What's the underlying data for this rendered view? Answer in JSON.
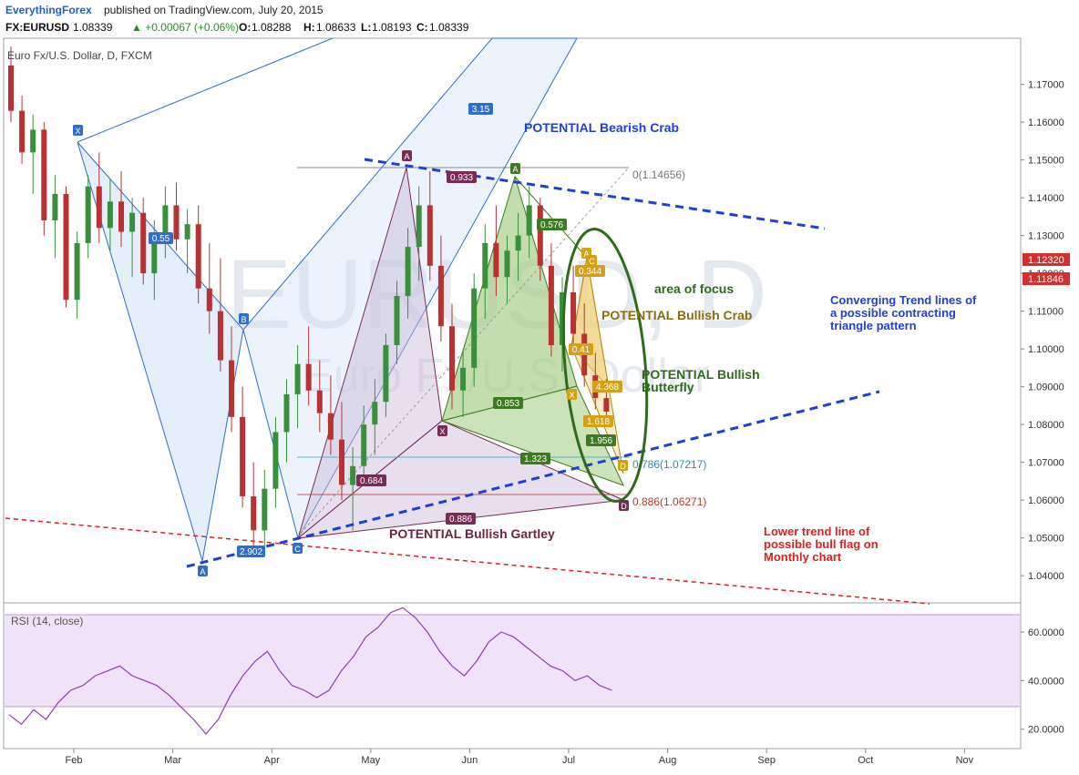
{
  "header": {
    "author": "EverythingForex",
    "published": "published on TradingView.com, July 20, 2015",
    "symbol": "FX:EURUSD",
    "last": "1.08339",
    "change": "▲ +0.00067 (+0.06%)",
    "o_label": "O:",
    "o": "1.08288",
    "h_label": "H:",
    "h": "1.08633",
    "l_label": "L:",
    "l": "1.08193",
    "c_label": "C:",
    "c": "1.08339"
  },
  "instrument_name": "Euro Fx/U.S. Dollar, D, FXCM",
  "watermark": {
    "symbol": "EURUSD, D",
    "name": "Euro Fx/U.S. Dollar"
  },
  "colors": {
    "up": "#3a8f3a",
    "down": "#b83232",
    "blue": "#1f4fd6",
    "green": "#2e6b1a",
    "olive": "#8a6d12",
    "maroon": "#6e2340",
    "red": "#e02020"
  },
  "chart_data": [
    {
      "type": "candlestick",
      "price_scale": {
        "ylim": [
          1.0328,
          1.1822
        ],
        "ticks": [
          "1.17000",
          "1.16000",
          "1.15000",
          "1.14000",
          "1.13000",
          "1.12000",
          "1.11000",
          "1.10000",
          "1.09000",
          "1.08000",
          "1.07000",
          "1.06000",
          "1.05000",
          "1.04000"
        ]
      },
      "time_axis": {
        "labels": [
          "Feb",
          "Mar",
          "Apr",
          "May",
          "Jun",
          "Jul",
          "Aug",
          "Sep",
          "Oct",
          "Nov"
        ]
      },
      "price_badges": [
        {
          "value": "1.12320",
          "color": "#d32f2f"
        },
        {
          "value": "1.11846",
          "color": "#d32f2f"
        }
      ],
      "candles_approx": [
        [
          0,
          1.175,
          1.18,
          1.16,
          1.163
        ],
        [
          1,
          1.163,
          1.167,
          1.149,
          1.152
        ],
        [
          2,
          1.152,
          1.162,
          1.141,
          1.158
        ],
        [
          3,
          1.158,
          1.16,
          1.13,
          1.134
        ],
        [
          4,
          1.134,
          1.146,
          1.124,
          1.141
        ],
        [
          5,
          1.141,
          1.143,
          1.111,
          1.113
        ],
        [
          6,
          1.113,
          1.131,
          1.108,
          1.128
        ],
        [
          7,
          1.128,
          1.146,
          1.124,
          1.143
        ],
        [
          8,
          1.143,
          1.152,
          1.128,
          1.132
        ],
        [
          9,
          1.132,
          1.145,
          1.126,
          1.139
        ],
        [
          10,
          1.139,
          1.147,
          1.127,
          1.131
        ],
        [
          11,
          1.131,
          1.14,
          1.119,
          1.136
        ],
        [
          12,
          1.136,
          1.14,
          1.117,
          1.12
        ],
        [
          13,
          1.12,
          1.134,
          1.113,
          1.13
        ],
        [
          14,
          1.13,
          1.143,
          1.124,
          1.138
        ],
        [
          15,
          1.138,
          1.144,
          1.126,
          1.129
        ],
        [
          16,
          1.129,
          1.137,
          1.12,
          1.133
        ],
        [
          17,
          1.133,
          1.138,
          1.112,
          1.116
        ],
        [
          18,
          1.116,
          1.128,
          1.104,
          1.11
        ],
        [
          19,
          1.11,
          1.124,
          1.094,
          1.097
        ],
        [
          20,
          1.097,
          1.106,
          1.078,
          1.082
        ],
        [
          21,
          1.082,
          1.09,
          1.058,
          1.061
        ],
        [
          22,
          1.061,
          1.07,
          1.047,
          1.052
        ],
        [
          23,
          1.052,
          1.068,
          1.046,
          1.063
        ],
        [
          24,
          1.063,
          1.082,
          1.058,
          1.078
        ],
        [
          25,
          1.078,
          1.092,
          1.07,
          1.088
        ],
        [
          26,
          1.088,
          1.101,
          1.079,
          1.096
        ],
        [
          27,
          1.096,
          1.106,
          1.085,
          1.089
        ],
        [
          28,
          1.089,
          1.097,
          1.078,
          1.083
        ],
        [
          29,
          1.083,
          1.093,
          1.072,
          1.076
        ],
        [
          30,
          1.076,
          1.086,
          1.06,
          1.064
        ],
        [
          31,
          1.064,
          1.074,
          1.052,
          1.069
        ],
        [
          32,
          1.069,
          1.085,
          1.064,
          1.08
        ],
        [
          33,
          1.08,
          1.092,
          1.072,
          1.086
        ],
        [
          34,
          1.086,
          1.104,
          1.082,
          1.101
        ],
        [
          35,
          1.101,
          1.118,
          1.096,
          1.114
        ],
        [
          36,
          1.114,
          1.132,
          1.108,
          1.127
        ],
        [
          37,
          1.127,
          1.143,
          1.118,
          1.138
        ],
        [
          38,
          1.138,
          1.147,
          1.118,
          1.122
        ],
        [
          39,
          1.122,
          1.13,
          1.102,
          1.106
        ],
        [
          40,
          1.106,
          1.112,
          1.084,
          1.089
        ],
        [
          41,
          1.089,
          1.1,
          1.082,
          1.095
        ],
        [
          42,
          1.095,
          1.12,
          1.09,
          1.116
        ],
        [
          43,
          1.116,
          1.133,
          1.108,
          1.128
        ],
        [
          44,
          1.128,
          1.138,
          1.114,
          1.119
        ],
        [
          45,
          1.119,
          1.13,
          1.112,
          1.126
        ],
        [
          46,
          1.126,
          1.136,
          1.118,
          1.13
        ],
        [
          47,
          1.13,
          1.143,
          1.124,
          1.138
        ],
        [
          48,
          1.138,
          1.14,
          1.118,
          1.122
        ],
        [
          49,
          1.122,
          1.128,
          1.098,
          1.101
        ],
        [
          50,
          1.101,
          1.119,
          1.094,
          1.115
        ],
        [
          51,
          1.115,
          1.122,
          1.1,
          1.104
        ],
        [
          52,
          1.104,
          1.112,
          1.09,
          1.093
        ],
        [
          53,
          1.093,
          1.099,
          1.084,
          1.087
        ],
        [
          54,
          1.087,
          1.092,
          1.082,
          1.0834
        ]
      ]
    },
    {
      "type": "line",
      "title": "RSI (14, close)",
      "ylim": [
        12,
        72
      ],
      "ticks": [
        "60.0000",
        "40.0000",
        "20.0000"
      ],
      "band": [
        30,
        70
      ],
      "values_approx": [
        26,
        22,
        28,
        24,
        31,
        36,
        38,
        42,
        44,
        46,
        42,
        40,
        38,
        34,
        29,
        24,
        18,
        24,
        34,
        42,
        48,
        52,
        44,
        38,
        36,
        33,
        36,
        44,
        50,
        58,
        62,
        68,
        70,
        66,
        60,
        52,
        46,
        42,
        48,
        56,
        60,
        58,
        54,
        50,
        46,
        44,
        40,
        42,
        38,
        36
      ]
    }
  ],
  "annotations": {
    "bearish_crab": "POTENTIAL Bearish Crab",
    "area_of_focus": "area of focus",
    "bullish_crab": "POTENTIAL Bullish Crab",
    "bullish_butterfly_1": "POTENTIAL Bullish",
    "bullish_butterfly_2": "Butterfly",
    "bullish_gartley": "POTENTIAL Bullish Gartley",
    "converging_1": "Converging Trend lines of",
    "converging_2": "a possible contracting",
    "converging_3": "triangle pattern",
    "lower_trend_1": "Lower trend line of",
    "lower_trend_2": "possible bull flag on",
    "lower_trend_3": "Monthly chart",
    "fib_0": "0(1.14656)",
    "fib_786": "0.786(1.07217)",
    "fib_886": "0.886(1.06271)"
  },
  "pattern_labels": {
    "blue_x": "X",
    "blue_a": "A",
    "blue_b": "B",
    "blue_c": "C",
    "maroon_x": "X",
    "maroon_a": "A",
    "maroon_d": "D",
    "green_a": "A",
    "olive_a": "A",
    "olive_c": "C",
    "olive_x": "X",
    "olive_d": "D",
    "r_315": "3.15",
    "r_55": "0.55",
    "r_2902": "2.902",
    "r_853": "0.853",
    "r_576": "0.576",
    "r_1323": "1.323",
    "r_1956": "1.956",
    "r_684": "0.684",
    "r_886": "0.886",
    "r_933": "0.933",
    "r_344": "0.344",
    "r_41": "0.41",
    "r_4368": "4.368",
    "r_1618": "1.618"
  }
}
